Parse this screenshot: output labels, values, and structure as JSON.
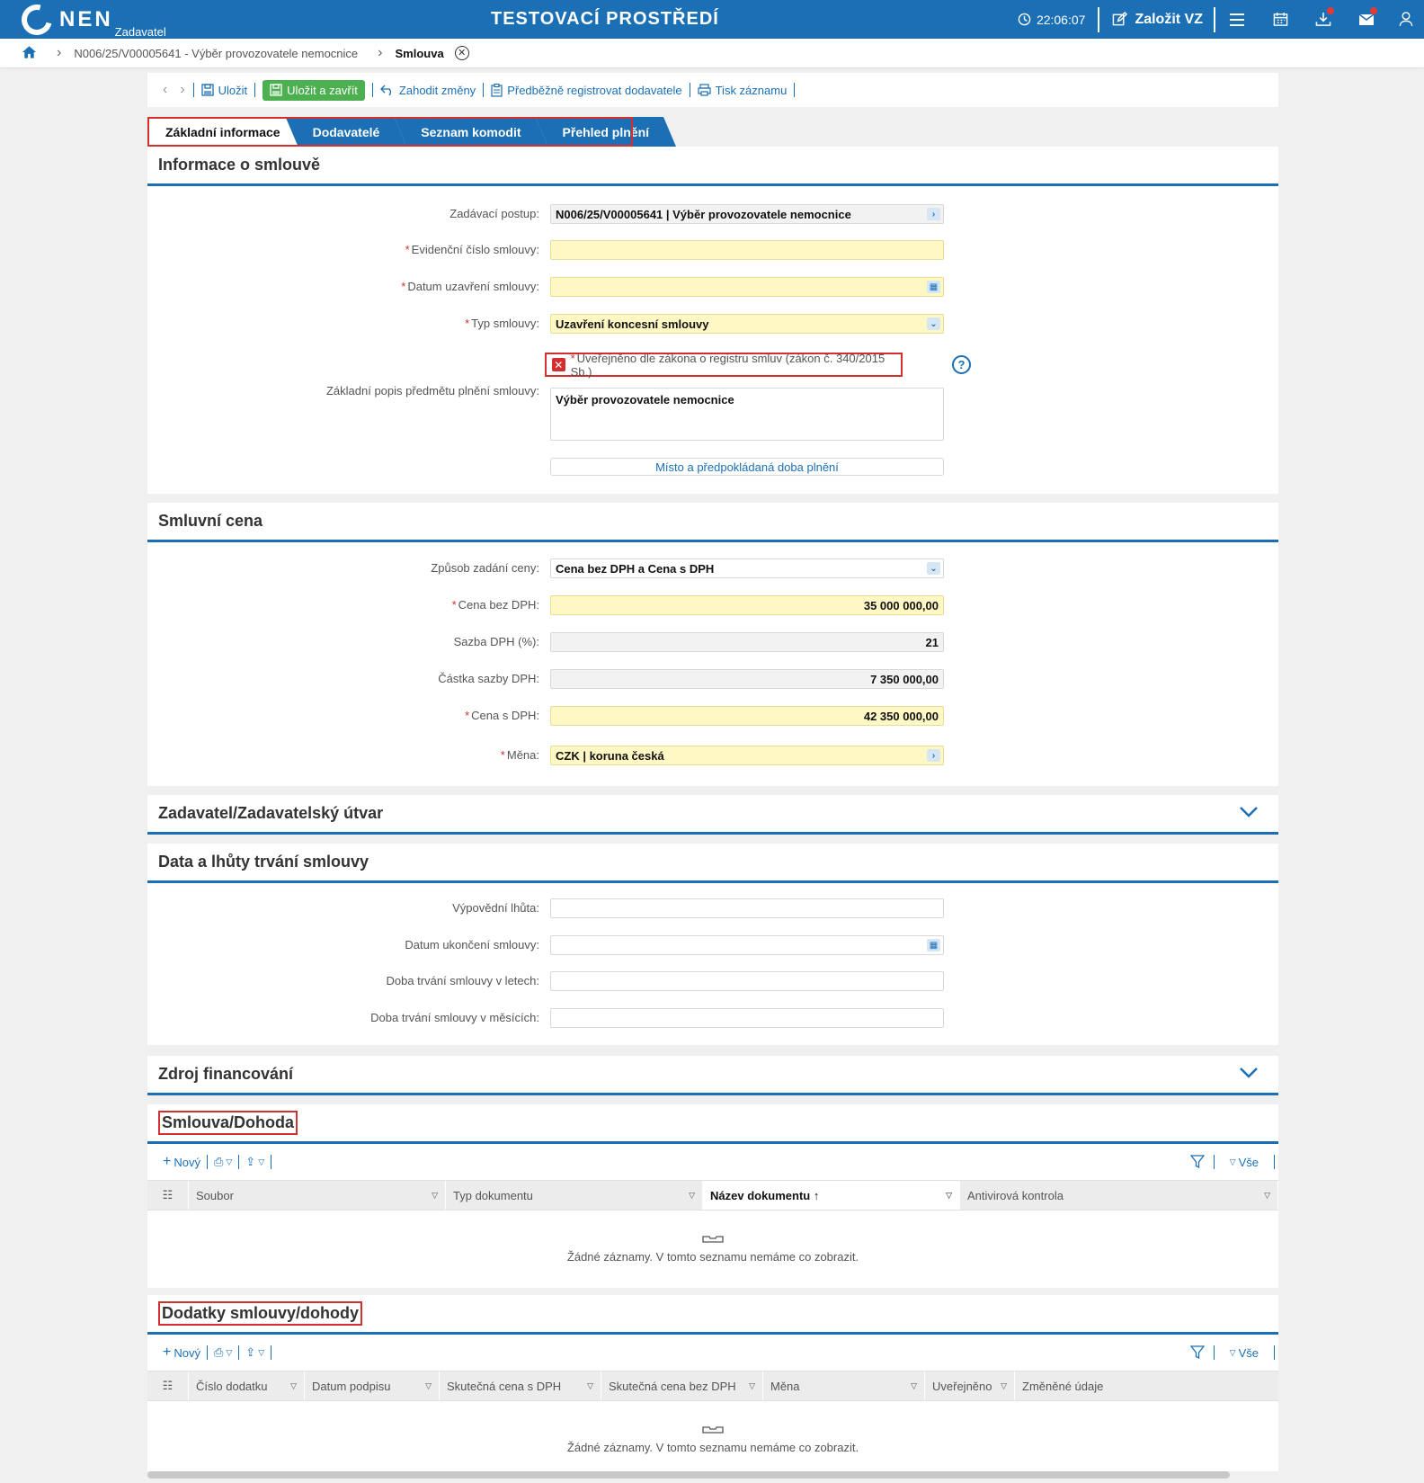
{
  "header": {
    "logo": "NEN",
    "logo_sub": "Zadavatel",
    "env_title": "TESTOVACÍ PROSTŘEDÍ",
    "clock": "22:06:07",
    "create_label": "Založit VZ"
  },
  "breadcrumb": {
    "item1": "N006/25/V00005641 - Výběr provozovatele nemocnice",
    "item2": "Smlouva"
  },
  "toolbar": {
    "save": "Uložit",
    "save_close": "Uložit a zavřít",
    "discard": "Zahodit změny",
    "prereg": "Předběžně registrovat dodavatele",
    "print": "Tisk záznamu"
  },
  "tabs": [
    "Základní informace",
    "Dodavatelé",
    "Seznam komodit",
    "Přehled plnění"
  ],
  "info": {
    "title": "Informace o smlouvě",
    "procedure_label": "Zadávací postup:",
    "procedure_value": "N006/25/V00005641 | Výběr provozovatele nemocnice",
    "evid_label": "Evidenční číslo smlouvy:",
    "evid_value": "",
    "date_label": "Datum uzavření smlouvy:",
    "date_value": "",
    "type_label": "Typ smlouvy:",
    "type_value": "Uzavření koncesní smlouvy",
    "published_label": "Uveřejněno dle zákona o registru smluv (zákon č. 340/2015 Sb.)",
    "desc_label": "Základní popis předmětu plnění smlouvy:",
    "desc_value": "Výběr provozovatele nemocnice",
    "place_button": "Místo a předpokládaná doba plnění"
  },
  "price": {
    "title": "Smluvní cena",
    "mode_label": "Způsob zadání ceny:",
    "mode_value": "Cena bez DPH a Cena s DPH",
    "net_label": "Cena bez DPH:",
    "net_value": "35 000 000,00",
    "vat_rate_label": "Sazba DPH (%):",
    "vat_rate_value": "21",
    "vat_amount_label": "Částka sazby DPH:",
    "vat_amount_value": "7 350 000,00",
    "gross_label": "Cena s DPH:",
    "gross_value": "42 350 000,00",
    "currency_label": "Měna:",
    "currency_value": "CZK | koruna česká"
  },
  "contracting": {
    "title": "Zadavatel/Zadavatelský útvar"
  },
  "terms": {
    "title": "Data a lhůty trvání smlouvy",
    "notice_label": "Výpovědní lhůta:",
    "end_label": "Datum ukončení smlouvy:",
    "years_label": "Doba trvání smlouvy v letech:",
    "months_label": "Doba trvání smlouvy v měsících:"
  },
  "funding": {
    "title": "Zdroj financování"
  },
  "docs": {
    "title": "Smlouva/Dohoda",
    "new": "Nový",
    "all": "Vše",
    "columns": [
      "Soubor",
      "Typ dokumentu",
      "Název dokumentu",
      "Antivirová kontrola"
    ],
    "empty": "Žádné záznamy. V tomto seznamu nemáme co zobrazit."
  },
  "amendments": {
    "title": "Dodatky smlouvy/dohody",
    "new": "Nový",
    "all": "Vše",
    "columns": [
      "Číslo dodatku",
      "Datum podpisu",
      "Skutečná cena s DPH",
      "Skutečná cena bez DPH",
      "Měna",
      "Uveřejněno",
      "Změněné údaje"
    ],
    "empty": "Žádné záznamy. V tomto seznamu nemáme co zobrazit."
  },
  "colors": {
    "primary": "#1b6fb5",
    "green": "#4caf50",
    "required": "#d32f2f",
    "field_required_bg": "#fff7c4"
  }
}
